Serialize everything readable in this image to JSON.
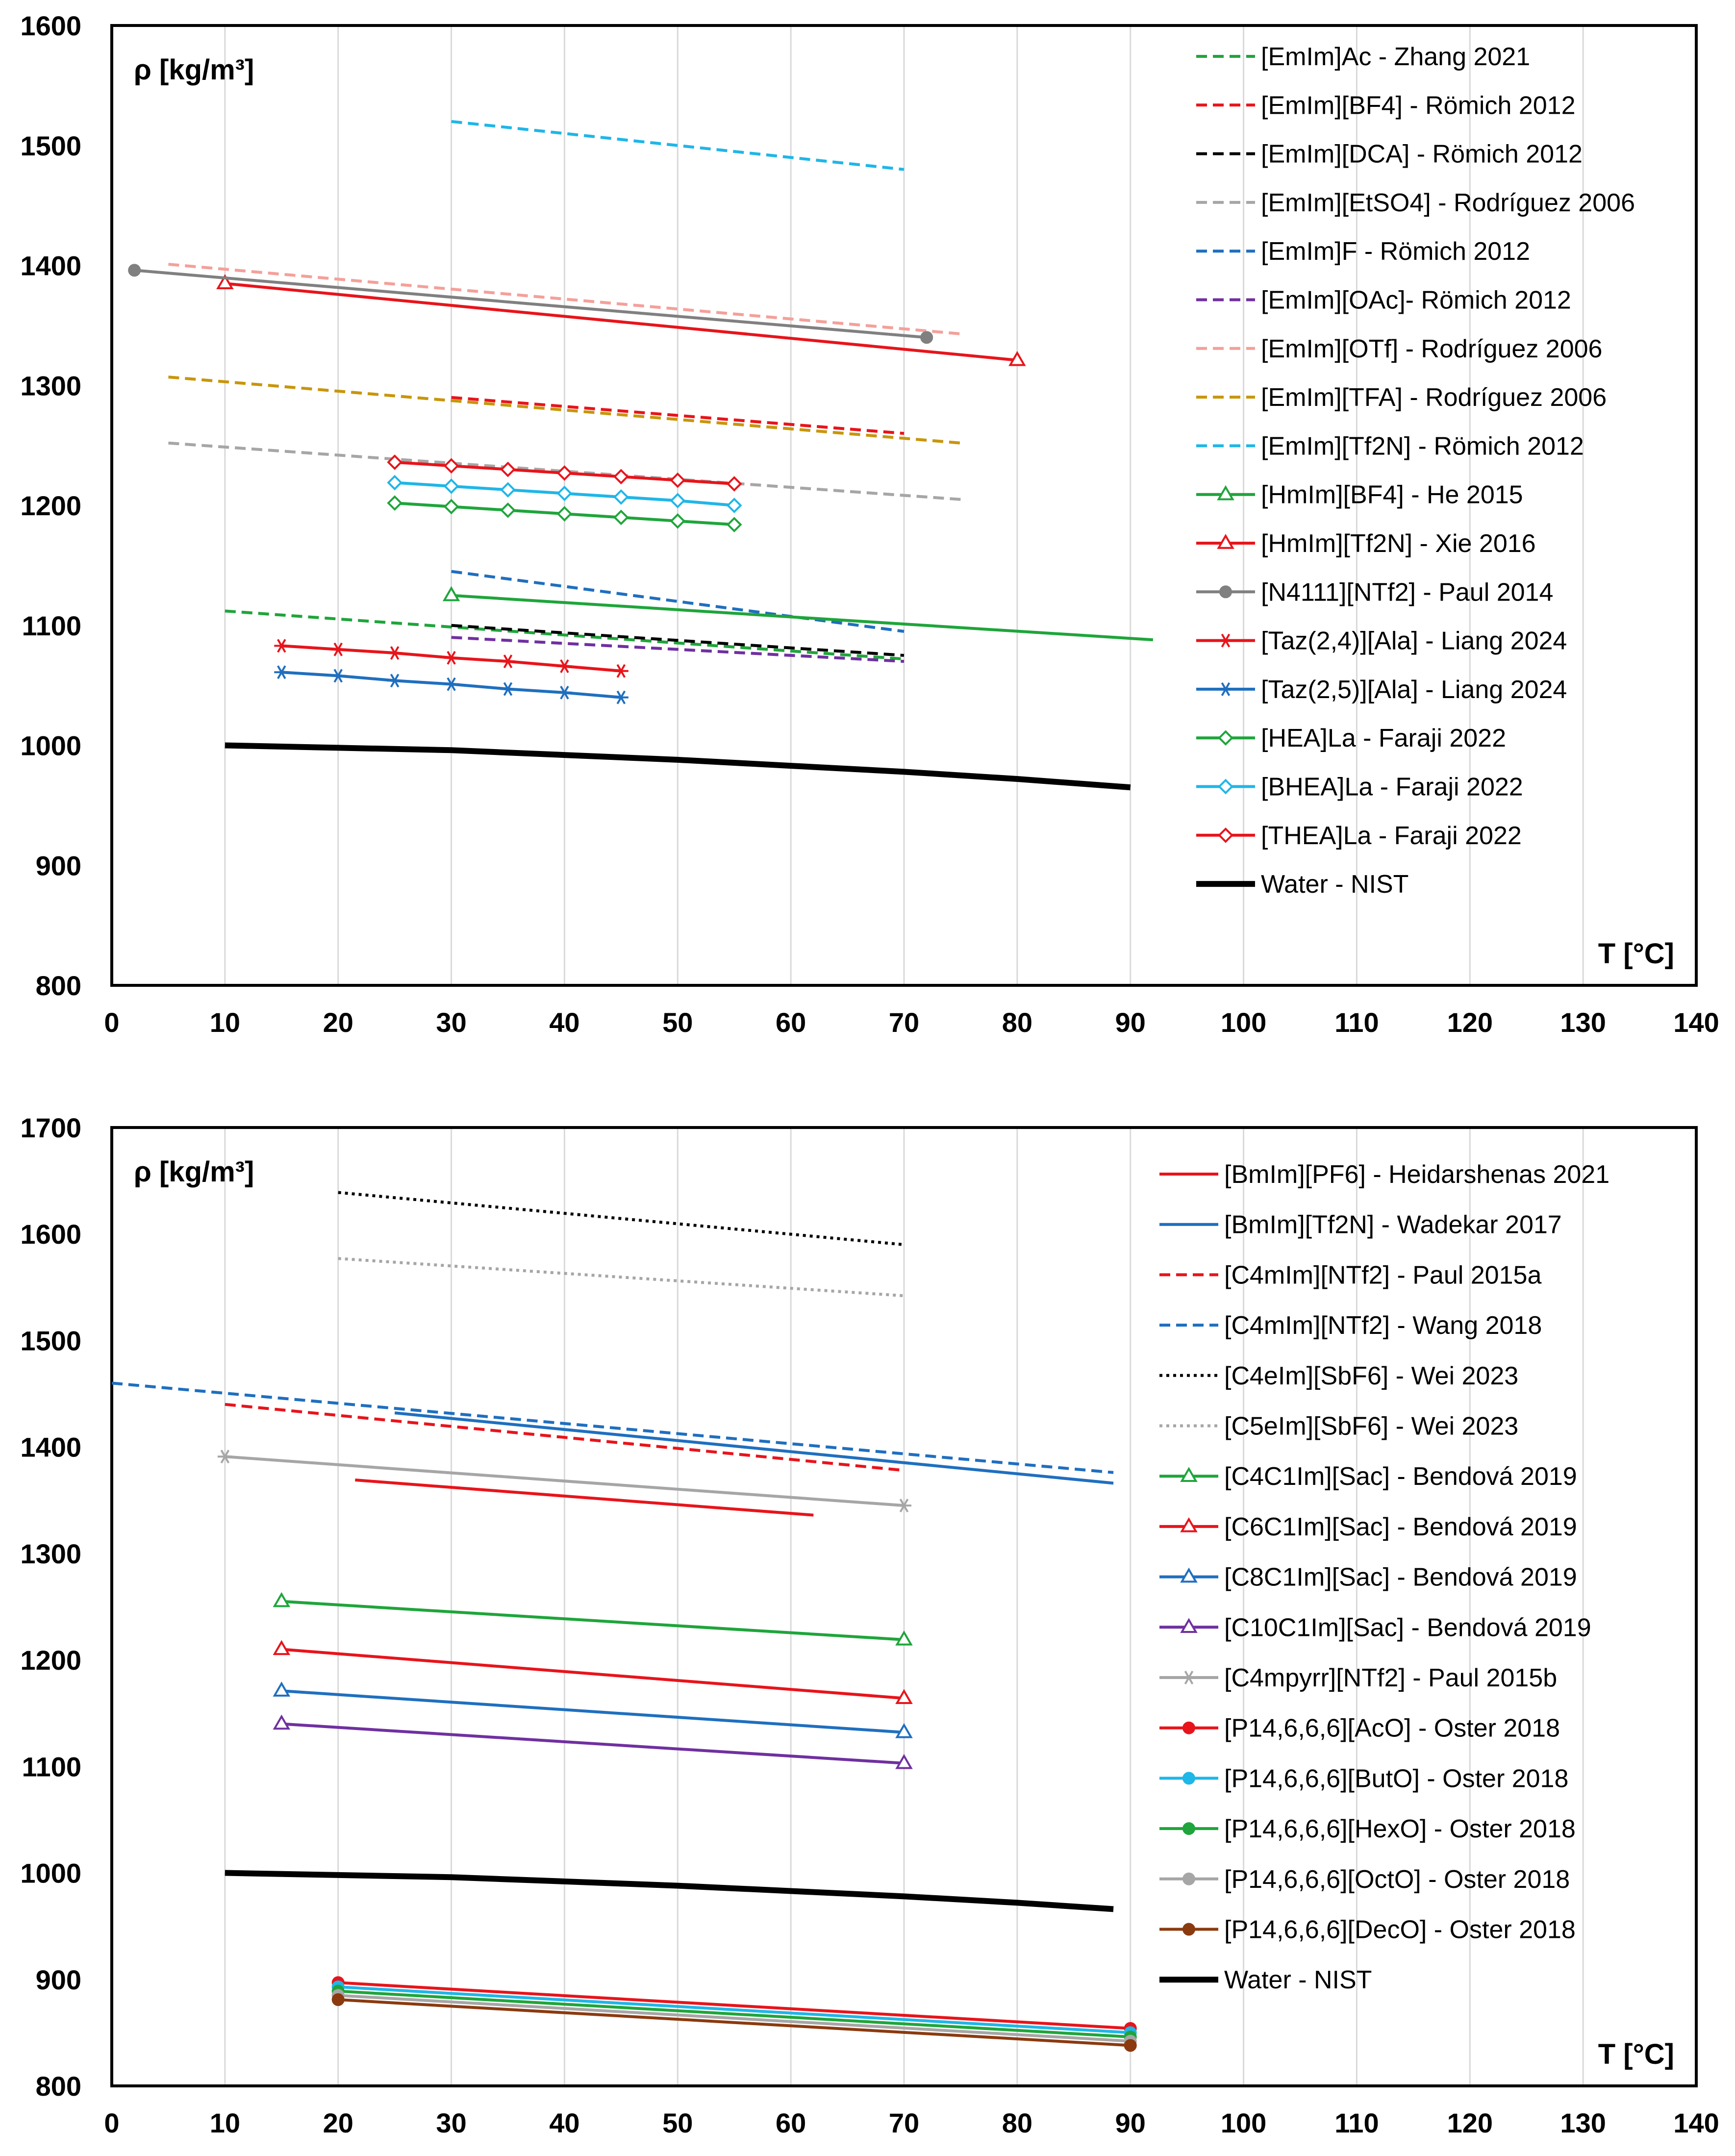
{
  "chart_data": [
    {
      "type": "line",
      "ylabel": "ρ [kg/m³]",
      "xlabel": "T [°C]",
      "xlim": [
        0,
        140
      ],
      "ylim": [
        800,
        1600
      ],
      "x_ticks": [
        0,
        10,
        20,
        30,
        40,
        50,
        60,
        70,
        80,
        90,
        100,
        110,
        120,
        130,
        140
      ],
      "y_ticks": [
        800,
        900,
        1000,
        1100,
        1200,
        1300,
        1400,
        1500,
        1600
      ],
      "grid": "vertical",
      "legend_position": "right",
      "series": [
        {
          "name": "[EmIm]Ac - Zhang 2021",
          "color": "#1fa53b",
          "dash": "dashed",
          "marker": "none",
          "points": [
            [
              10,
              1112
            ],
            [
              70,
              1072
            ]
          ]
        },
        {
          "name": "[EmIm][BF4] - Römich 2012",
          "color": "#e8141b",
          "dash": "dashed",
          "marker": "none",
          "points": [
            [
              30,
              1290
            ],
            [
              70,
              1260
            ]
          ]
        },
        {
          "name": "[EmIm][DCA] - Römich 2012",
          "color": "#000000",
          "dash": "dashed",
          "marker": "none",
          "points": [
            [
              30,
              1100
            ],
            [
              70,
              1075
            ]
          ]
        },
        {
          "name": "[EmIm][EtSO4] - Rodríguez 2006",
          "color": "#a6a6a6",
          "dash": "dashed",
          "marker": "none",
          "points": [
            [
              5,
              1252
            ],
            [
              75,
              1205
            ]
          ]
        },
        {
          "name": "[EmIm]F - Römich 2012",
          "color": "#1f6fbf",
          "dash": "dashed",
          "marker": "none",
          "points": [
            [
              30,
              1145
            ],
            [
              70,
              1095
            ]
          ]
        },
        {
          "name": "[EmIm][OAc]- Römich 2012",
          "color": "#7030a0",
          "dash": "dashed",
          "marker": "none",
          "points": [
            [
              30,
              1090
            ],
            [
              70,
              1070
            ]
          ]
        },
        {
          "name": "[EmIm][OTf] - Rodríguez 2006",
          "color": "#f4a09a",
          "dash": "dashed",
          "marker": "none",
          "points": [
            [
              5,
              1401
            ],
            [
              75,
              1343
            ]
          ]
        },
        {
          "name": "[EmIm][TFA] - Rodríguez 2006",
          "color": "#c8960c",
          "dash": "dashed",
          "marker": "none",
          "points": [
            [
              5,
              1307
            ],
            [
              75,
              1252
            ]
          ]
        },
        {
          "name": "[EmIm][Tf2N] - Römich 2012",
          "color": "#1fb6e8",
          "dash": "dashed",
          "marker": "none",
          "points": [
            [
              30,
              1520
            ],
            [
              70,
              1480
            ]
          ]
        },
        {
          "name": "[HmIm][BF4] - He 2015",
          "color": "#1fa53b",
          "dash": "solid",
          "marker": "triangle",
          "points": [
            [
              30,
              1125
            ],
            [
              92,
              1088
            ]
          ],
          "marker_points": [
            [
              30,
              1125
            ]
          ]
        },
        {
          "name": "[HmIm][Tf2N] - Xie 2016",
          "color": "#e8141b",
          "dash": "solid",
          "marker": "triangle",
          "points": [
            [
              10,
              1385
            ],
            [
              80,
              1321
            ]
          ],
          "marker_points": [
            [
              10,
              1385
            ],
            [
              80,
              1321
            ]
          ]
        },
        {
          "name": "[N4111][NTf2] - Paul 2014",
          "color": "#808080",
          "dash": "solid",
          "marker": "circle",
          "points": [
            [
              2,
              1396
            ],
            [
              72,
              1340
            ]
          ],
          "marker_points": [
            [
              2,
              1396
            ],
            [
              72,
              1340
            ]
          ]
        },
        {
          "name": "[Taz(2,4)][Ala] - Liang 2024",
          "color": "#e8141b",
          "dash": "solid",
          "marker": "star",
          "points": [
            [
              15,
              1083
            ],
            [
              20,
              1080
            ],
            [
              25,
              1077
            ],
            [
              30,
              1073
            ],
            [
              35,
              1070
            ],
            [
              40,
              1066
            ],
            [
              45,
              1062
            ]
          ],
          "marker_points": [
            [
              15,
              1083
            ],
            [
              20,
              1080
            ],
            [
              25,
              1077
            ],
            [
              30,
              1073
            ],
            [
              35,
              1070
            ],
            [
              40,
              1066
            ],
            [
              45,
              1062
            ]
          ]
        },
        {
          "name": "[Taz(2,5)][Ala] - Liang 2024",
          "color": "#1f6fbf",
          "dash": "solid",
          "marker": "star",
          "points": [
            [
              15,
              1061
            ],
            [
              20,
              1058
            ],
            [
              25,
              1054
            ],
            [
              30,
              1051
            ],
            [
              35,
              1047
            ],
            [
              40,
              1044
            ],
            [
              45,
              1040
            ]
          ],
          "marker_points": [
            [
              15,
              1061
            ],
            [
              20,
              1058
            ],
            [
              25,
              1054
            ],
            [
              30,
              1051
            ],
            [
              35,
              1047
            ],
            [
              40,
              1044
            ],
            [
              45,
              1040
            ]
          ]
        },
        {
          "name": "[HEA]La - Faraji 2022",
          "color": "#1fa53b",
          "dash": "solid",
          "marker": "diamond",
          "points": [
            [
              25,
              1202
            ],
            [
              30,
              1199
            ],
            [
              35,
              1196
            ],
            [
              40,
              1193
            ],
            [
              45,
              1190
            ],
            [
              50,
              1187
            ],
            [
              55,
              1184
            ]
          ],
          "marker_points": [
            [
              25,
              1202
            ],
            [
              30,
              1199
            ],
            [
              35,
              1196
            ],
            [
              40,
              1193
            ],
            [
              45,
              1190
            ],
            [
              50,
              1187
            ],
            [
              55,
              1184
            ]
          ]
        },
        {
          "name": "[BHEA]La - Faraji 2022",
          "color": "#1fb6e8",
          "dash": "solid",
          "marker": "diamond",
          "points": [
            [
              25,
              1219
            ],
            [
              30,
              1216
            ],
            [
              35,
              1213
            ],
            [
              40,
              1210
            ],
            [
              45,
              1207
            ],
            [
              50,
              1204
            ],
            [
              55,
              1200
            ]
          ],
          "marker_points": [
            [
              25,
              1219
            ],
            [
              30,
              1216
            ],
            [
              35,
              1213
            ],
            [
              40,
              1210
            ],
            [
              45,
              1207
            ],
            [
              50,
              1204
            ],
            [
              55,
              1200
            ]
          ]
        },
        {
          "name": "[THEA]La - Faraji 2022",
          "color": "#e8141b",
          "dash": "solid",
          "marker": "diamond",
          "points": [
            [
              25,
              1236
            ],
            [
              30,
              1233
            ],
            [
              35,
              1230
            ],
            [
              40,
              1227
            ],
            [
              45,
              1224
            ],
            [
              50,
              1221
            ],
            [
              55,
              1218
            ]
          ],
          "marker_points": [
            [
              25,
              1236
            ],
            [
              30,
              1233
            ],
            [
              35,
              1230
            ],
            [
              40,
              1227
            ],
            [
              45,
              1224
            ],
            [
              50,
              1221
            ],
            [
              55,
              1218
            ]
          ]
        },
        {
          "name": "Water - NIST",
          "color": "#000000",
          "dash": "solid",
          "marker": "none",
          "thick": true,
          "points": [
            [
              10,
              1000
            ],
            [
              20,
              998
            ],
            [
              30,
              996
            ],
            [
              40,
              992
            ],
            [
              50,
              988
            ],
            [
              60,
              983
            ],
            [
              70,
              978
            ],
            [
              80,
              972
            ],
            [
              90,
              965
            ]
          ]
        }
      ]
    },
    {
      "type": "line",
      "ylabel": "ρ [kg/m³]",
      "xlabel": "T [°C]",
      "xlim": [
        0,
        140
      ],
      "ylim": [
        800,
        1700
      ],
      "x_ticks": [
        0,
        10,
        20,
        30,
        40,
        50,
        60,
        70,
        80,
        90,
        100,
        110,
        120,
        130,
        140
      ],
      "y_ticks": [
        800,
        900,
        1000,
        1100,
        1200,
        1300,
        1400,
        1500,
        1600,
        1700
      ],
      "grid": "vertical",
      "legend_position": "right",
      "series": [
        {
          "name": "[BmIm][PF6] - Heidarshenas 2021",
          "color": "#e8141b",
          "dash": "solid",
          "marker": "none",
          "points": [
            [
              21.5,
              1369
            ],
            [
              62,
              1336
            ]
          ]
        },
        {
          "name": "[BmIm][Tf2N] - Wadekar 2017",
          "color": "#1f6fbf",
          "dash": "solid",
          "marker": "none",
          "points": [
            [
              25,
              1432
            ],
            [
              88.5,
              1366
            ]
          ]
        },
        {
          "name": "[C4mIm][NTf2] - Paul 2015a",
          "color": "#e8141b",
          "dash": "dashed",
          "marker": "none",
          "points": [
            [
              10,
              1440
            ],
            [
              70,
              1378
            ]
          ]
        },
        {
          "name": "[C4mIm][NTf2] - Wang 2018",
          "color": "#1f6fbf",
          "dash": "dashed",
          "marker": "none",
          "points": [
            [
              0,
              1460
            ],
            [
              88.5,
              1376
            ]
          ]
        },
        {
          "name": "[C4eIm][SbF6] - Wei 2023",
          "color": "#000000",
          "dash": "dotted",
          "marker": "none",
          "points": [
            [
              20,
              1639
            ],
            [
              70,
              1590
            ]
          ]
        },
        {
          "name": "[C5eIm][SbF6] - Wei 2023",
          "color": "#a6a6a6",
          "dash": "dotted",
          "marker": "none",
          "points": [
            [
              20,
              1577
            ],
            [
              70,
              1542
            ]
          ]
        },
        {
          "name": "[C4C1Im][Sac] - Bendová 2019",
          "color": "#1fa53b",
          "dash": "solid",
          "marker": "triangle",
          "points": [
            [
              15,
              1255
            ],
            [
              70,
              1219
            ]
          ],
          "marker_points": [
            [
              15,
              1255
            ],
            [
              70,
              1219
            ]
          ]
        },
        {
          "name": "[C6C1Im][Sac] - Bendová 2019",
          "color": "#e8141b",
          "dash": "solid",
          "marker": "triangle",
          "points": [
            [
              15,
              1210
            ],
            [
              70,
              1164
            ]
          ],
          "marker_points": [
            [
              15,
              1210
            ],
            [
              70,
              1164
            ]
          ]
        },
        {
          "name": "[C8C1Im][Sac] - Bendová 2019",
          "color": "#1f6fbf",
          "dash": "solid",
          "marker": "triangle",
          "points": [
            [
              15,
              1171
            ],
            [
              70,
              1132
            ]
          ],
          "marker_points": [
            [
              15,
              1171
            ],
            [
              70,
              1132
            ]
          ]
        },
        {
          "name": "[C10C1Im][Sac] - Bendová 2019",
          "color": "#7030a0",
          "dash": "solid",
          "marker": "triangle",
          "points": [
            [
              15,
              1140
            ],
            [
              70,
              1103
            ]
          ],
          "marker_points": [
            [
              15,
              1140
            ],
            [
              70,
              1103
            ]
          ]
        },
        {
          "name": "[C4mpyrr][NTf2] - Paul 2015b",
          "color": "#a6a6a6",
          "dash": "solid",
          "marker": "star",
          "points": [
            [
              10,
              1391
            ],
            [
              70,
              1345
            ]
          ],
          "marker_points": [
            [
              10,
              1391
            ],
            [
              70,
              1345
            ]
          ]
        },
        {
          "name": "[P14,6,6,6][AcO] - Oster 2018",
          "color": "#e8141b",
          "dash": "solid",
          "marker": "circle",
          "filled": true,
          "points": [
            [
              20,
              897
            ],
            [
              90,
              854
            ]
          ],
          "marker_points": [
            [
              20,
              897
            ],
            [
              90,
              854
            ]
          ]
        },
        {
          "name": "[P14,6,6,6][ButO] - Oster 2018",
          "color": "#1fb6e8",
          "dash": "solid",
          "marker": "circle",
          "filled": true,
          "points": [
            [
              20,
              893
            ],
            [
              90,
              850
            ]
          ],
          "marker_points": [
            [
              20,
              893
            ],
            [
              90,
              850
            ]
          ]
        },
        {
          "name": "[P14,6,6,6][HexO] - Oster 2018",
          "color": "#1fa53b",
          "dash": "solid",
          "marker": "circle",
          "filled": true,
          "points": [
            [
              20,
              889
            ],
            [
              90,
              846
            ]
          ],
          "marker_points": [
            [
              20,
              889
            ],
            [
              90,
              846
            ]
          ]
        },
        {
          "name": "[P14,6,6,6][OctO] - Oster 2018",
          "color": "#a6a6a6",
          "dash": "solid",
          "marker": "circle",
          "filled": true,
          "points": [
            [
              20,
              885
            ],
            [
              90,
              842
            ]
          ],
          "marker_points": [
            [
              20,
              885
            ],
            [
              90,
              842
            ]
          ]
        },
        {
          "name": "[P14,6,6,6][DecO] - Oster 2018",
          "color": "#8b3a0f",
          "dash": "solid",
          "marker": "circle",
          "filled": true,
          "points": [
            [
              20,
              881
            ],
            [
              90,
              838
            ]
          ],
          "marker_points": [
            [
              20,
              881
            ],
            [
              90,
              838
            ]
          ]
        },
        {
          "name": "Water - NIST",
          "color": "#000000",
          "dash": "solid",
          "marker": "none",
          "thick": true,
          "points": [
            [
              10,
              1000
            ],
            [
              20,
              998
            ],
            [
              30,
              996
            ],
            [
              40,
              992
            ],
            [
              50,
              988
            ],
            [
              60,
              983
            ],
            [
              70,
              978
            ],
            [
              80,
              972
            ],
            [
              88.5,
              966
            ]
          ]
        }
      ]
    }
  ]
}
